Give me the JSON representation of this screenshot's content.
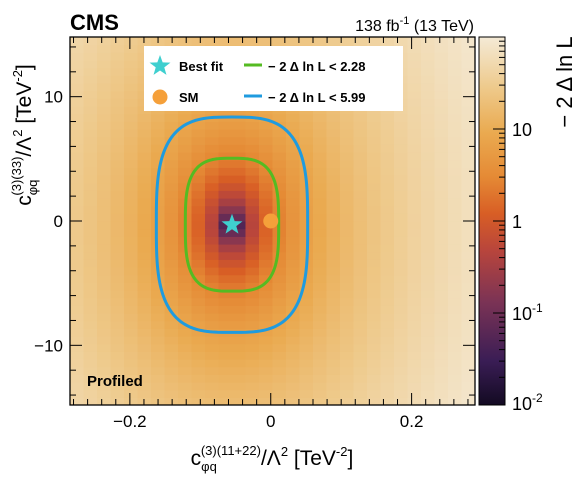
{
  "header": {
    "experiment": "CMS",
    "lumi_value": "138 fb",
    "lumi_exp": "-1",
    "energy": "(13 TeV)"
  },
  "profiled_label": "Profiled",
  "chart_data": {
    "type": "heatmap",
    "title": "",
    "x_axis": {
      "label_base": "c",
      "label_sub": "φq",
      "label_sup": "(3)(11+22)",
      "label_rest": "/Λ",
      "label_pow": "2",
      "label_units": " [TeV",
      "label_units_pow": "-2",
      "label_close": "]",
      "range": [
        -0.285,
        0.29
      ],
      "ticks": [
        -0.2,
        0,
        0.2
      ],
      "tick_labels": [
        "−0.2",
        "0",
        "0.2"
      ]
    },
    "y_axis": {
      "label_base": "c",
      "label_sub": "φq",
      "label_sup": "(3)(33)",
      "label_rest": "/Λ",
      "label_pow": "2",
      "label_units": " [TeV",
      "label_units_pow": "-2",
      "label_close": "]",
      "range": [
        -14.8,
        14.8
      ],
      "ticks": [
        -10,
        0,
        10
      ],
      "tick_labels": [
        "−10",
        "0",
        "10"
      ]
    },
    "z_axis": {
      "label": "− 2 Δ ln L",
      "scale": "log",
      "range": [
        0.01,
        100
      ],
      "ticks": [
        0.01,
        0.1,
        1,
        10
      ],
      "tick_labels": [
        {
          "base": "10",
          "exp": "-2"
        },
        {
          "base": "10",
          "exp": "-1"
        },
        {
          "base": "1",
          "exp": ""
        },
        {
          "base": "10",
          "exp": ""
        }
      ]
    },
    "likelihood_model": {
      "best_fit_x": -0.055,
      "best_fit_y": -0.3,
      "sigma_x": 0.0418,
      "sigma_y": 3.47
    },
    "points": [
      {
        "name": "Best fit",
        "x": -0.055,
        "y": -0.3,
        "marker": "star",
        "color": "#3fcfcf"
      },
      {
        "name": "SM",
        "x": 0.0,
        "y": 0.0,
        "marker": "circle",
        "color": "#f5a03a"
      }
    ],
    "contours": [
      {
        "name": "− 2  Δ ln L < 2.28",
        "level": 2.28,
        "color": "#55bb22"
      },
      {
        "name": "− 2  Δ ln L < 5.99",
        "level": 5.99,
        "color": "#1f9bdf"
      }
    ],
    "legend_position": "top",
    "grid": false
  }
}
